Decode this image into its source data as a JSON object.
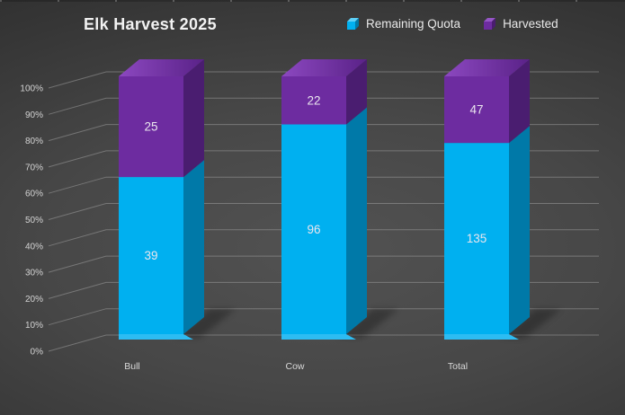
{
  "chart_data": {
    "type": "bar",
    "subtype": "3d-stacked-column-100pct",
    "title": "Elk Harvest 2025",
    "categories": [
      "Bull",
      "Cow",
      "Total"
    ],
    "series": [
      {
        "name": "Remaining Quota",
        "values": [
          39,
          96,
          135
        ],
        "colors": {
          "front": "#00b0f0",
          "side": "#0079a8",
          "bevel": "#2dbcf2",
          "legend_top": "#5fd0f7"
        }
      },
      {
        "name": "Harvested",
        "values": [
          25,
          22,
          47
        ],
        "colors": {
          "front": "#6d2ca0",
          "side": "#4a1d70",
          "top_left": "#8c48c0",
          "top_right": "#5a2288",
          "legend_top": "#9556c6"
        }
      }
    ],
    "stacking": "percent",
    "y_axis": {
      "min": 0,
      "max": 100,
      "unit": "%",
      "ticks": [
        "0%",
        "10%",
        "20%",
        "30%",
        "40%",
        "50%",
        "60%",
        "70%",
        "80%",
        "90%",
        "100%"
      ]
    },
    "x_axis": {
      "labels": [
        "Bull",
        "Cow",
        "Total"
      ]
    },
    "legend_position": "top-right",
    "grid": true,
    "background": {
      "style": "dark-gray-radial",
      "center": "#525252",
      "edge": "#282828"
    },
    "text_color": "#e9e9e9"
  }
}
